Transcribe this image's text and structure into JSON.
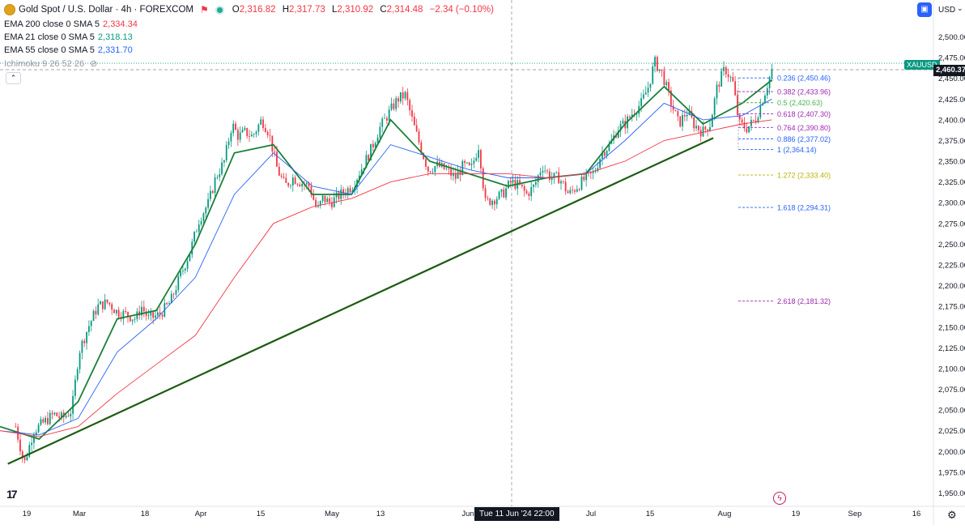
{
  "header": {
    "symbol_title": "Gold Spot / U.S. Dollar · 4h · FOREXCOM",
    "open_label": "O",
    "open": "2,316.82",
    "high_label": "H",
    "high": "2,317.73",
    "low_label": "L",
    "low": "2,310.92",
    "close_label": "C",
    "close": "2,314.48",
    "change": "−2.34 (−0.10%)"
  },
  "indicators": [
    {
      "label": "EMA 200 close 0 SMA 5",
      "value": "2,334.34",
      "color": "#f23645"
    },
    {
      "label": "EMA 21 close 0 SMA 5",
      "value": "2,318.13",
      "color": "#089981"
    },
    {
      "label": "EMA 55 close 0 SMA 5",
      "value": "2,331.70",
      "color": "#2962ff"
    },
    {
      "label": "Ichimoku 9 26 52 26",
      "value": "",
      "color": "#787b86"
    }
  ],
  "currency": {
    "label": "USD"
  },
  "symbol_badge": "XAUUSD",
  "last_price": "2,460.37",
  "crosshair_time": "Tue 11 Jun '24  22:00",
  "colors": {
    "up": "#089981",
    "down": "#f23645",
    "ema21": "#1b7f38",
    "ema55": "#2962ff",
    "ema200": "#f23645",
    "trendline": "#1e5b12"
  },
  "chart_data": {
    "type": "candlestick",
    "title": "Gold Spot / U.S. Dollar · 4h · FOREXCOM",
    "y_axis": {
      "ticks": [
        "2,500.00",
        "2,475.00",
        "2,450.00",
        "2,425.00",
        "2,400.00",
        "2,375.00",
        "2,350.00",
        "2,325.00",
        "2,300.00",
        "2,275.00",
        "2,250.00",
        "2,225.00",
        "2,200.00",
        "2,175.00",
        "2,150.00",
        "2,125.00",
        "2,100.00",
        "2,075.00",
        "2,050.00",
        "2,025.00",
        "2,000.00",
        "1,975.00",
        "1,950.00"
      ],
      "range": [
        1950,
        2500
      ]
    },
    "x_axis": {
      "ticks": [
        "19",
        "Mar",
        "18",
        "Apr",
        "15",
        "May",
        "13",
        "Jun",
        "Jul",
        "15",
        "Aug",
        "19",
        "Sep",
        "16"
      ]
    },
    "close_path": [
      [
        2.0,
        2030
      ],
      [
        3.1,
        1985
      ],
      [
        4.3,
        2025
      ],
      [
        5.6,
        2035
      ],
      [
        6.9,
        2045
      ],
      [
        8.0,
        2040
      ],
      [
        9.2,
        2050
      ],
      [
        10.1,
        2120
      ],
      [
        11.3,
        2150
      ],
      [
        12.5,
        2175
      ],
      [
        13.8,
        2180
      ],
      [
        15.0,
        2168
      ],
      [
        16.2,
        2165
      ],
      [
        17.4,
        2160
      ],
      [
        18.1,
        2175
      ],
      [
        19.0,
        2160
      ],
      [
        20.4,
        2165
      ],
      [
        21.8,
        2180
      ],
      [
        23.0,
        2210
      ],
      [
        24.3,
        2240
      ],
      [
        25.5,
        2280
      ],
      [
        26.7,
        2300
      ],
      [
        27.6,
        2330
      ],
      [
        28.7,
        2350
      ],
      [
        29.7,
        2395
      ],
      [
        30.5,
        2380
      ],
      [
        31.4,
        2385
      ],
      [
        32.3,
        2380
      ],
      [
        33.5,
        2400
      ],
      [
        34.4,
        2385
      ],
      [
        35.5,
        2340
      ],
      [
        36.5,
        2320
      ],
      [
        37.5,
        2330
      ],
      [
        38.4,
        2325
      ],
      [
        39.6,
        2320
      ],
      [
        40.6,
        2290
      ],
      [
        41.3,
        2305
      ],
      [
        42.3,
        2300
      ],
      [
        43.6,
        2310
      ],
      [
        45.1,
        2320
      ],
      [
        46.2,
        2340
      ],
      [
        47.3,
        2360
      ],
      [
        48.6,
        2390
      ],
      [
        49.9,
        2410
      ],
      [
        50.9,
        2425
      ],
      [
        51.9,
        2430
      ],
      [
        52.9,
        2395
      ],
      [
        53.9,
        2365
      ],
      [
        54.8,
        2340
      ],
      [
        55.9,
        2345
      ],
      [
        57.0,
        2340
      ],
      [
        58.3,
        2330
      ],
      [
        59.3,
        2345
      ],
      [
        60.3,
        2340
      ],
      [
        61.3,
        2370
      ],
      [
        62.1,
        2300
      ],
      [
        63.3,
        2305
      ],
      [
        64.3,
        2310
      ],
      [
        65.4,
        2325
      ],
      [
        66.5,
        2320
      ],
      [
        67.4,
        2310
      ],
      [
        68.4,
        2320
      ],
      [
        69.4,
        2345
      ],
      [
        70.5,
        2330
      ],
      [
        71.6,
        2330
      ],
      [
        72.8,
        2310
      ],
      [
        73.9,
        2320
      ],
      [
        75.0,
        2330
      ],
      [
        76.0,
        2335
      ],
      [
        77.0,
        2360
      ],
      [
        78.1,
        2370
      ],
      [
        79.1,
        2390
      ],
      [
        80.0,
        2395
      ],
      [
        81.1,
        2410
      ],
      [
        82.1,
        2420
      ],
      [
        83.0,
        2440
      ],
      [
        83.8,
        2470
      ],
      [
        84.8,
        2455
      ],
      [
        85.9,
        2420
      ],
      [
        86.9,
        2395
      ],
      [
        87.9,
        2410
      ],
      [
        88.8,
        2395
      ],
      [
        89.9,
        2385
      ],
      [
        90.9,
        2395
      ],
      [
        91.8,
        2440
      ],
      [
        92.8,
        2462
      ],
      [
        93.8,
        2445
      ],
      [
        94.6,
        2395
      ],
      [
        95.6,
        2390
      ],
      [
        96.7,
        2400
      ],
      [
        97.8,
        2430
      ],
      [
        98.8,
        2460
      ]
    ],
    "series": [
      {
        "name": "EMA 21",
        "x": [
          0,
          5,
          10,
          15,
          20,
          25,
          30,
          35,
          40,
          45,
          50,
          55,
          60,
          65,
          70,
          75,
          80,
          85,
          90,
          95,
          98.8
        ],
        "y": [
          2030,
          2015,
          2060,
          2160,
          2170,
          2250,
          2360,
          2370,
          2310,
          2310,
          2400,
          2350,
          2335,
          2320,
          2330,
          2335,
          2395,
          2440,
          2395,
          2420,
          2448
        ]
      },
      {
        "name": "EMA 55",
        "x": [
          0,
          5,
          10,
          15,
          20,
          25,
          30,
          35,
          40,
          45,
          50,
          55,
          60,
          65,
          70,
          75,
          80,
          85,
          90,
          95,
          98.8
        ],
        "y": [
          2025,
          2020,
          2040,
          2120,
          2160,
          2210,
          2310,
          2360,
          2320,
          2310,
          2370,
          2355,
          2340,
          2330,
          2330,
          2335,
          2375,
          2420,
          2400,
          2405,
          2425
        ]
      },
      {
        "name": "EMA 200",
        "x": [
          0,
          5,
          10,
          15,
          20,
          25,
          30,
          35,
          40,
          45,
          50,
          55,
          60,
          65,
          70,
          75,
          80,
          85,
          90,
          95,
          98.8
        ],
        "y": [
          2025,
          2018,
          2030,
          2070,
          2105,
          2140,
          2210,
          2275,
          2295,
          2305,
          2325,
          2335,
          2335,
          2335,
          2330,
          2335,
          2350,
          2375,
          2385,
          2395,
          2400
        ]
      }
    ],
    "trendline": {
      "x": [
        1.0,
        91.3
      ],
      "y": [
        1985,
        2378
      ]
    },
    "fibonacci": {
      "levels": [
        {
          "label": "0.236 (2,450.46)",
          "price": 2450.46,
          "color": "#2962ff"
        },
        {
          "label": "0.382 (2,433.96)",
          "price": 2433.96,
          "color": "#9c27b0"
        },
        {
          "label": "0.5 (2,420.63)",
          "price": 2420.63,
          "color": "#4caf50"
        },
        {
          "label": "0.618 (2,407.30)",
          "price": 2407.3,
          "color": "#9c27b0"
        },
        {
          "label": "0.764 (2,390.80)",
          "price": 2390.8,
          "color": "#9c27b0"
        },
        {
          "label": "0.886 (2,377.02)",
          "price": 2377.02,
          "color": "#2962ff"
        },
        {
          "label": "1 (2,364.14)",
          "price": 2364.14,
          "color": "#2962ff"
        },
        {
          "label": "1.272 (2,333.40)",
          "price": 2333.4,
          "color": "#b8b400"
        },
        {
          "label": "1.618 (2,294.31)",
          "price": 2294.31,
          "color": "#2962ff"
        },
        {
          "label": "2.618 (2,181.32)",
          "price": 2181.32,
          "color": "#9c27b0"
        }
      ]
    },
    "current_price": 2460.37,
    "grid": true,
    "legend_position": "top-left"
  }
}
